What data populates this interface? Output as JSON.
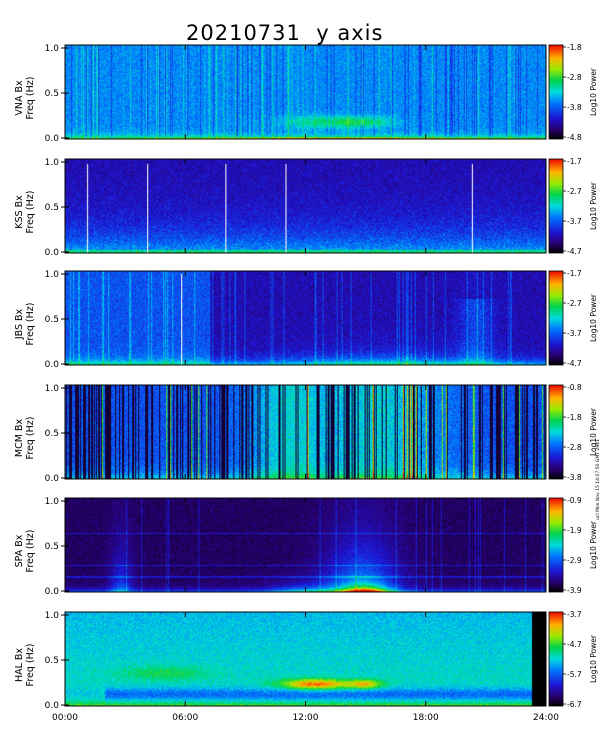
{
  "page": {
    "title": "20210731  y axis",
    "side_note": "ucl Mon Nov 15 14:07:50 GMT 2021"
  },
  "chart_data": {
    "type": "heatmap",
    "title": "20210731  y axis",
    "x_ticks": [
      "00:00",
      "06:00",
      "12:00",
      "18:00",
      "24:00"
    ],
    "xlim": [
      0,
      24
    ],
    "y_ticks": [
      "0.0",
      "0.5",
      "1.0"
    ],
    "ylim": [
      0,
      1
    ],
    "colorbar_label": "Log10 Power",
    "colormap": "rainbow",
    "panels": [
      {
        "station": "VNA Bx",
        "ylabel_top": "VNA Bx",
        "ylabel_bottom": "Freq (Hz)",
        "colorbar_ticks": [
          "-1.8",
          "-2.8",
          "-3.8",
          "-4.8"
        ],
        "vmin": -4.8,
        "vmax": -1.8,
        "style": "vna"
      },
      {
        "station": "KSS Bx",
        "ylabel_top": "KSS Bx",
        "ylabel_bottom": "Freq (Hz)",
        "colorbar_ticks": [
          "-1.7",
          "-2.7",
          "-3.7",
          "-4.7"
        ],
        "vmin": -4.7,
        "vmax": -1.7,
        "style": "kss"
      },
      {
        "station": "JBS Bx",
        "ylabel_top": "JBS Bx",
        "ylabel_bottom": "Freq (Hz)",
        "colorbar_ticks": [
          "-1.7",
          "-2.7",
          "-3.7",
          "-4.7"
        ],
        "vmin": -4.7,
        "vmax": -1.7,
        "style": "jbs"
      },
      {
        "station": "MCM Bx",
        "ylabel_top": "MCM Bx",
        "ylabel_bottom": "Freq (Hz)",
        "colorbar_ticks": [
          "-0.8",
          "-1.8",
          "-2.8",
          "-3.8"
        ],
        "vmin": -3.8,
        "vmax": -0.8,
        "style": "mcm"
      },
      {
        "station": "SPA Bx",
        "ylabel_top": "SPA Bx",
        "ylabel_bottom": "Freq (Hz)",
        "colorbar_ticks": [
          "-0.9",
          "-1.9",
          "-2.9",
          "-3.9"
        ],
        "vmin": -3.9,
        "vmax": -0.9,
        "style": "spa"
      },
      {
        "station": "HAL Bx",
        "ylabel_top": "HAL Bx",
        "ylabel_bottom": "Freq (Hz)",
        "colorbar_ticks": [
          "-3.7",
          "-4.7",
          "-5.7",
          "-6.7"
        ],
        "vmin": -6.7,
        "vmax": -3.7,
        "style": "hal"
      }
    ]
  }
}
